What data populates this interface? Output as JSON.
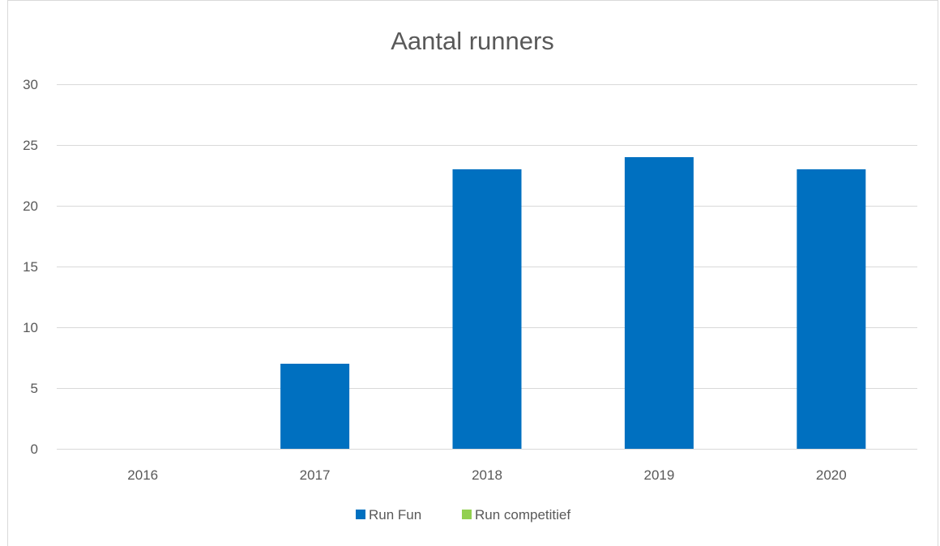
{
  "chart_data": {
    "type": "bar",
    "title": "Aantal runners",
    "xlabel": "",
    "ylabel": "",
    "categories": [
      "2016",
      "2017",
      "2018",
      "2019",
      "2020"
    ],
    "series": [
      {
        "name": "Run Fun",
        "values": [
          0,
          7,
          23,
          24,
          23
        ],
        "color": "#0070C0"
      },
      {
        "name": "Run competitief",
        "values": [
          0,
          0,
          0,
          0,
          0
        ],
        "color": "#92D050"
      }
    ],
    "ylim": [
      0,
      30
    ],
    "yticks": [
      0,
      5,
      10,
      15,
      20,
      25,
      30
    ],
    "grid": true,
    "legend_position": "bottom"
  }
}
